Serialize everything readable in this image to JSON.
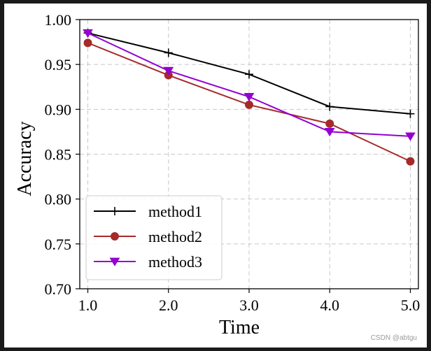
{
  "chart_data": {
    "type": "line",
    "title": "",
    "xlabel": "Time",
    "ylabel": "Accuracy",
    "x": [
      1.0,
      2.0,
      3.0,
      4.0,
      5.0
    ],
    "xticks": [
      "1.0",
      "2.0",
      "3.0",
      "4.0",
      "5.0"
    ],
    "xlim": [
      0.9,
      5.1
    ],
    "ylim": [
      0.7,
      1.0
    ],
    "yticks": [
      "0.70",
      "0.75",
      "0.80",
      "0.85",
      "0.90",
      "0.95",
      "1.00"
    ],
    "grid": true,
    "legend_position": "bottom-left",
    "series": [
      {
        "name": "method1",
        "values": [
          0.985,
          0.963,
          0.939,
          0.903,
          0.895
        ],
        "color": "#000000",
        "marker": "plus"
      },
      {
        "name": "method2",
        "values": [
          0.974,
          0.938,
          0.905,
          0.884,
          0.842
        ],
        "color": "#a52a2a",
        "marker": "circle"
      },
      {
        "name": "method3",
        "values": [
          0.985,
          0.943,
          0.914,
          0.875,
          0.87
        ],
        "color": "#9400d3",
        "marker": "triangle-down"
      }
    ]
  },
  "watermark": "CSDN @abtgu"
}
